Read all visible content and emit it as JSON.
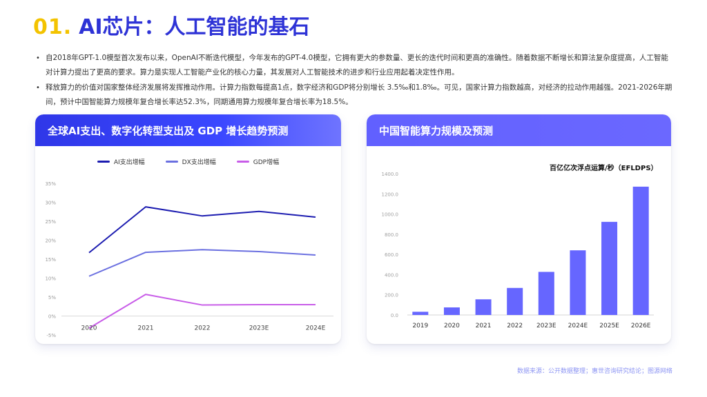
{
  "title": {
    "number": "01.",
    "text": "AI芯片：人工智能的基石"
  },
  "bullets": [
    "自2018年GPT-1.0模型首次发布以来，OpenAI不断迭代模型，今年发布的GPT-4.0模型，它拥有更大的参数量、更长的迭代时间和更高的准确性。随着数据不断增长和算法复杂度提高，人工智能对计算力提出了更高的要求。算力是实现人工智能产业化的核心力量，其发展对人工智能技术的进步和行业应用起着决定性作用。",
    "释放算力的价值对国家整体经济发展将发挥推动作用。计算力指数每提高1点，数字经济和GDP将分别增长 3.5‰和1.8‰。可见，国家计算力指数越高，对经济的拉动作用越强。2021-2026年期间，预计中国智能算力规模年复合增长率达52.3%，同期通用算力规模年复合增长率为18.5%。"
  ],
  "left_card": {
    "title": "全球AI支出、数字化转型支出及 GDP 增长趋势预测"
  },
  "right_card": {
    "title": "中国智能算力规模及预测",
    "unit_label": "百亿亿次浮点运算/秒（EFLDPS）"
  },
  "source_note": "数据来源：公开数据整理；惠世咨询研究结论；图源网络",
  "chart_data": [
    {
      "type": "line",
      "x": [
        "2020",
        "2021",
        "2022",
        "2023E",
        "2024E"
      ],
      "ylim": [
        -5,
        35
      ],
      "y_ticks": [
        "-5%",
        "0%",
        "5%",
        "10%",
        "15%",
        "20%",
        "25%",
        "30%",
        "35%"
      ],
      "series": [
        {
          "name": "AI支出增幅",
          "values": [
            16.7,
            28.8,
            26.4,
            27.6,
            26.1
          ],
          "color": "#1b1bb0"
        },
        {
          "name": "DX支出增幅",
          "values": [
            10.5,
            16.8,
            17.5,
            17.0,
            16.1
          ],
          "color": "#6a6fe0"
        },
        {
          "name": "GDP增幅",
          "values": [
            -3.2,
            5.7,
            2.9,
            3.0,
            3.0
          ],
          "color": "#c85ce8"
        }
      ],
      "legend": "top-center",
      "grid": false
    },
    {
      "type": "bar",
      "categories": [
        "2019",
        "2020",
        "2021",
        "2022",
        "2023E",
        "2024E",
        "2025E",
        "2026E"
      ],
      "values": [
        31.7,
        75.0,
        155.2,
        268.0,
        427.0,
        640.7,
        922.8,
        1271.4
      ],
      "ylim": [
        0,
        1400
      ],
      "y_ticks": [
        "0.0",
        "200.0",
        "400.0",
        "600.0",
        "800.0",
        "1000.0",
        "1200.0",
        "1400.0"
      ],
      "color": "#6666ff",
      "grid": false
    }
  ]
}
